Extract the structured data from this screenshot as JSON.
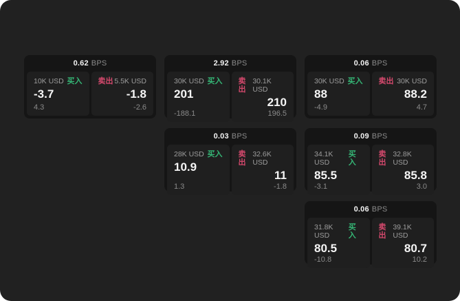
{
  "labels": {
    "bps_unit": "BPS",
    "buy": "买入",
    "sell": "卖出"
  },
  "colors": {
    "canvas_bg": "#212121",
    "card_bg": "#151515",
    "panel_bg": "#1f1f1f",
    "buy_green": "#35b575",
    "sell_red": "#d5496d",
    "text_primary": "#f5f5f5",
    "text_muted": "#8a8a8a"
  },
  "cards": [
    {
      "bps": "0.62",
      "buy": {
        "amount": "10K USD",
        "price": "-3.7",
        "delta": "4.3"
      },
      "sell": {
        "amount": "5.5K USD",
        "price": "-1.8",
        "delta": "-2.6"
      }
    },
    {
      "bps": "2.92",
      "buy": {
        "amount": "30K USD",
        "price": "201",
        "delta": "-188.1"
      },
      "sell": {
        "amount": "30.1K USD",
        "price": "210",
        "delta": "196.5"
      }
    },
    {
      "bps": "0.06",
      "buy": {
        "amount": "30K USD",
        "price": "88",
        "delta": "-4.9"
      },
      "sell": {
        "amount": "30K USD",
        "price": "88.2",
        "delta": "4.7"
      }
    },
    {
      "bps": "0.03",
      "buy": {
        "amount": "28K USD",
        "price": "10.9",
        "delta": "1.3"
      },
      "sell": {
        "amount": "32.6K USD",
        "price": "11",
        "delta": "-1.8"
      }
    },
    {
      "bps": "0.09",
      "buy": {
        "amount": "34.1K USD",
        "price": "85.5",
        "delta": "-3.1"
      },
      "sell": {
        "amount": "32.8K USD",
        "price": "85.8",
        "delta": "3.0"
      }
    },
    {
      "bps": "0.06",
      "buy": {
        "amount": "31.8K USD",
        "price": "80.5",
        "delta": "-10.8"
      },
      "sell": {
        "amount": "39.1K USD",
        "price": "80.7",
        "delta": "10.2"
      }
    }
  ]
}
